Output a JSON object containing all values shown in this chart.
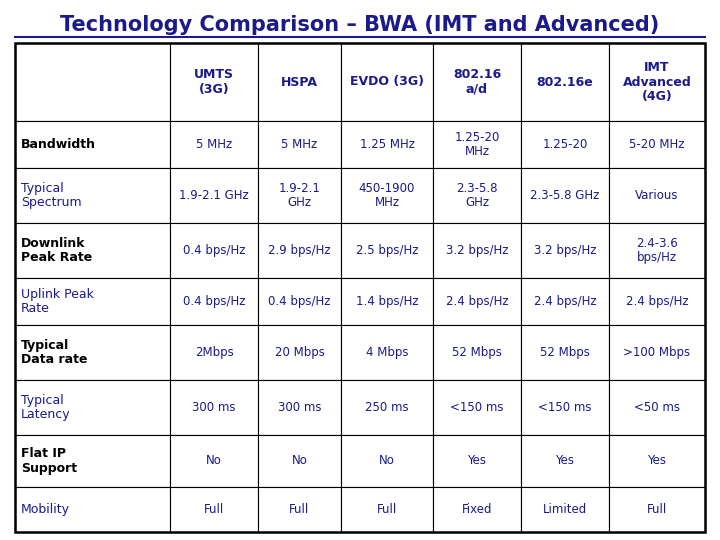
{
  "title": "Technology Comparison – BWA (IMT and Advanced)",
  "title_color": "#1a1a8c",
  "col_headers": [
    "UMTS\n(3G)",
    "HSPA",
    "EVDO (3G)",
    "802.16\na/d",
    "802.16e",
    "IMT\nAdvanced\n(4G)"
  ],
  "row_headers": [
    "Bandwidth",
    "Typical\nSpectrum",
    "Downlink\nPeak Rate",
    "Uplink Peak\nRate",
    "Typical\nData rate",
    "Typical\nLatency",
    "Flat IP\nSupport",
    "Mobility"
  ],
  "row_header_colors": [
    "#000000",
    "#1a1a8c",
    "#000000",
    "#1a1a8c",
    "#000000",
    "#1a1a8c",
    "#000000",
    "#1a1a8c"
  ],
  "row_header_bold": [
    true,
    false,
    true,
    false,
    true,
    false,
    true,
    false
  ],
  "col_header_color": "#1a1a8c",
  "data": [
    [
      "5 MHz",
      "5 MHz",
      "1.25 MHz",
      "1.25-20\nMHz",
      "1.25-20",
      "5-20 MHz"
    ],
    [
      "1.9-2.1 GHz",
      "1.9-2.1\nGHz",
      "450-1900\nMHz",
      "2.3-5.8\nGHz",
      "2.3-5.8 GHz",
      "Various"
    ],
    [
      "0.4 bps/Hz",
      "2.9 bps/Hz",
      "2.5 bps/Hz",
      "3.2 bps/Hz",
      "3.2 bps/Hz",
      "2.4-3.6\nbps/Hz"
    ],
    [
      "0.4 bps/Hz",
      "0.4 bps/Hz",
      "1.4 bps/Hz",
      "2.4 bps/Hz",
      "2.4 bps/Hz",
      "2.4 bps/Hz"
    ],
    [
      "2Mbps",
      "20 Mbps",
      "4 Mbps",
      "52 Mbps",
      "52 Mbps",
      ">100 Mbps"
    ],
    [
      "300 ms",
      "300 ms",
      "250 ms",
      "<150 ms",
      "<150 ms",
      "<50 ms"
    ],
    [
      "No",
      "No",
      "No",
      "Yes",
      "Yes",
      "Yes"
    ],
    [
      "Full",
      "Full",
      "Full",
      "Fixed",
      "Limited",
      "Full"
    ]
  ],
  "data_color": "#1a1a8c",
  "bg_color": "#ffffff"
}
